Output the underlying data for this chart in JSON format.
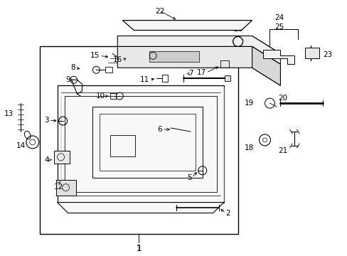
{
  "bg_color": "#ffffff",
  "line_color": "#000000",
  "fig_width": 4.89,
  "fig_height": 3.6,
  "dpi": 100,
  "fontsize": 7.5,
  "bold_fontsize": 8.5
}
